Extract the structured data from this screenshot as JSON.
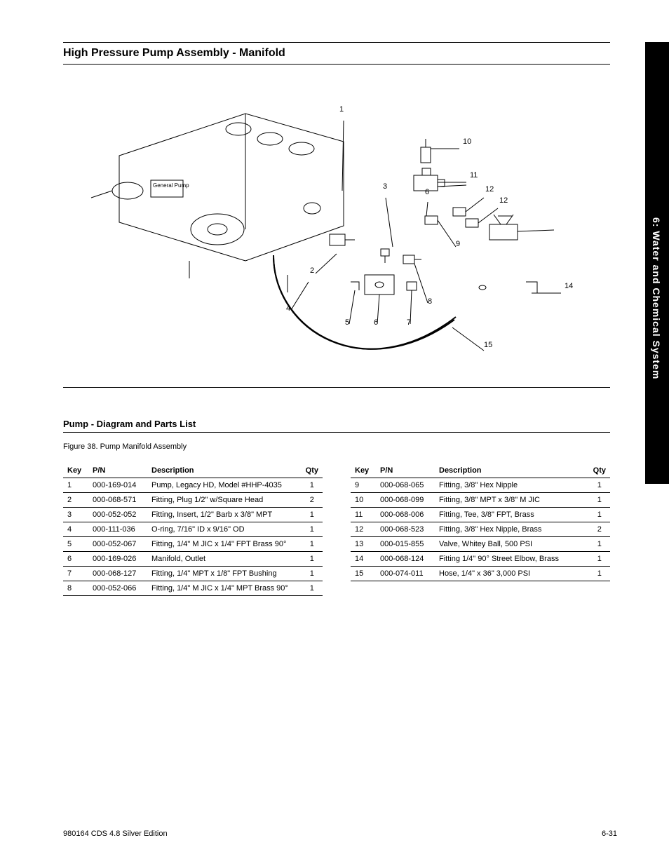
{
  "title": "High Pressure Pump Assembly - Manifold",
  "figure_section_heading": "Pump - Diagram and Parts List",
  "figure_caption": "Figure 38. Pump Manifold Assembly",
  "callouts": {
    "c1": "1",
    "c2": "2",
    "c3": "3",
    "c4": "4",
    "c5": "5",
    "c7": "7",
    "c8": "8",
    "c9": "9",
    "c10": "10",
    "c11": "11",
    "c6a": "6",
    "c6b": "6",
    "c12a": "12",
    "c12b": "12",
    "c14": "14",
    "c15": "15"
  },
  "parts_table": {
    "columns": [
      "Key",
      "P/N",
      "Description",
      "Qty"
    ],
    "left_rows": [
      [
        "1",
        "000-169-014",
        "Pump, Legacy HD, Model #HHP-4035",
        "1"
      ],
      [
        "2",
        "000-068-571",
        "Fitting, Plug 1/2\" w/Square Head",
        "2"
      ],
      [
        "3",
        "000-052-052",
        "Fitting, Insert, 1/2\" Barb x 3/8\" MPT",
        "1"
      ],
      [
        "4",
        "000-111-036",
        "O-ring, 7/16\" ID x 9/16\" OD",
        "1"
      ],
      [
        "5",
        "000-052-067",
        "Fitting, 1/4\" M JIC x 1/4\" FPT Brass 90°",
        "1"
      ],
      [
        "6",
        "000-169-026",
        "Manifold, Outlet",
        "1"
      ],
      [
        "7",
        "000-068-127",
        "Fitting, 1/4\" MPT x 1/8\" FPT Bushing",
        "1"
      ],
      [
        "8",
        "000-052-066",
        "Fitting, 1/4\" M JIC x 1/4\" MPT Brass 90°",
        "1"
      ]
    ],
    "right_rows": [
      [
        "9",
        "000-068-065",
        "Fitting, 3/8\" Hex Nipple",
        "1"
      ],
      [
        "10",
        "000-068-099",
        "Fitting, 3/8\" MPT x 3/8\" M JIC",
        "1"
      ],
      [
        "11",
        "000-068-006",
        "Fitting, Tee, 3/8\" FPT, Brass",
        "1"
      ],
      [
        "12",
        "000-068-523",
        "Fitting, 3/8\" Hex Nipple, Brass",
        "2"
      ],
      [
        "13",
        "000-015-855",
        "Valve, Whitey Ball, 500 PSI",
        "1"
      ],
      [
        "14",
        "000-068-124",
        "Fitting 1/4\" 90° Street Elbow, Brass",
        "1"
      ],
      [
        "15",
        "000-074-011",
        "Hose, 1/4\" x 36\" 3,000 PSI",
        "1"
      ]
    ]
  },
  "side_tab": "6: Water and Chemical System",
  "footer": {
    "left": "980164 CDS 4.8 Silver Edition",
    "right": "6-31"
  },
  "badge_text": "General Pump"
}
